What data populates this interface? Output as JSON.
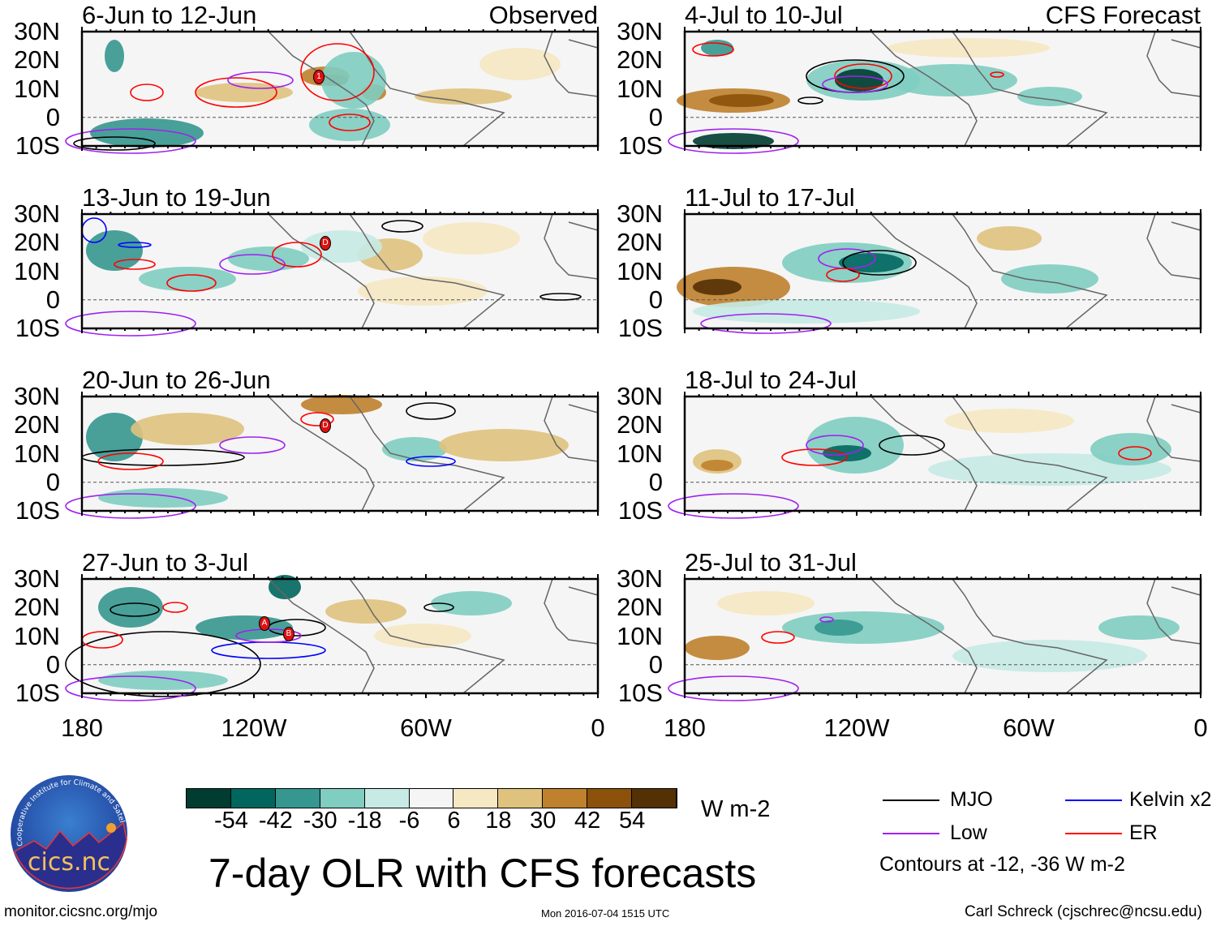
{
  "panels": [
    {
      "title": "6-Jun to 12-Jun",
      "tag": "Observed"
    },
    {
      "title": "4-Jul to 10-Jul",
      "tag": "CFS Forecast"
    },
    {
      "title": "13-Jun to 19-Jun"
    },
    {
      "title": "11-Jul to 17-Jul"
    },
    {
      "title": "20-Jun to 26-Jun"
    },
    {
      "title": "18-Jul to 24-Jul"
    },
    {
      "title": "27-Jun to 3-Jul"
    },
    {
      "title": "25-Jul to 31-Jul"
    }
  ],
  "lat_labels": [
    "30N",
    "20N",
    "10N",
    "0",
    "10S"
  ],
  "lon_labels": [
    "180",
    "120W",
    "60W",
    "0"
  ],
  "storm_markers": [
    "1",
    "D",
    "D",
    "A",
    "B"
  ],
  "colorbar": {
    "colors": [
      "#003c30",
      "#01665e",
      "#35978f",
      "#80cdc1",
      "#c7eae5",
      "#f5f5f5",
      "#f6e8c3",
      "#dfc27d",
      "#bf812d",
      "#8c510a",
      "#543005"
    ],
    "labels": [
      "-54",
      "-42",
      "-30",
      "-18",
      "-6",
      "6",
      "18",
      "30",
      "42",
      "54"
    ],
    "units": "W m-2"
  },
  "title": "7-day OLR with CFS forecasts",
  "timestamp": "Mon 2016-07-04 1515 UTC",
  "legend": {
    "items": [
      {
        "label": "MJO",
        "color": "#000000"
      },
      {
        "label": "Kelvin x2",
        "color": "#0000ff"
      },
      {
        "label": "Low",
        "color": "#a020f0"
      },
      {
        "label": "ER",
        "color": "#ff0000"
      }
    ],
    "note": "Contours at -12, -36 W m-2"
  },
  "logo": {
    "text": "cics.nc",
    "ring_text": "Cooperative Institute for Climate and Satellites"
  },
  "url": "monitor.cicsnc.org/mjo",
  "credit": "Carl Schreck (cjschrec@ncsu.edu)"
}
